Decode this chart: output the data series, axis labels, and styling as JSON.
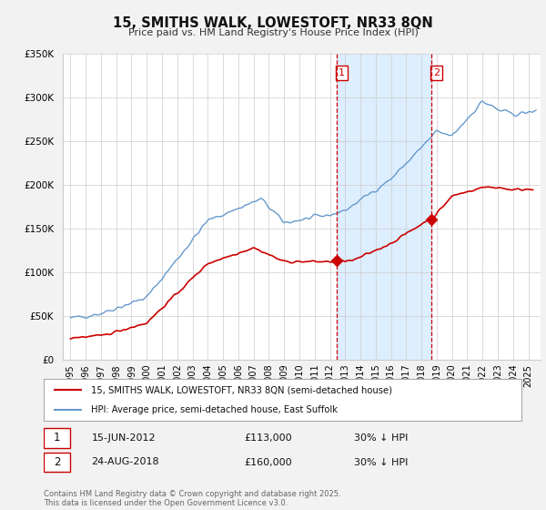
{
  "title": "15, SMITHS WALK, LOWESTOFT, NR33 8QN",
  "subtitle": "Price paid vs. HM Land Registry's House Price Index (HPI)",
  "ylabel_ticks": [
    "£0",
    "£50K",
    "£100K",
    "£150K",
    "£200K",
    "£250K",
    "£300K",
    "£350K"
  ],
  "ylim": [
    0,
    350000
  ],
  "xlim_start": 1994.5,
  "xlim_end": 2025.8,
  "background_color": "#f2f2f2",
  "plot_bg_color": "#ffffff",
  "red_color": "#cc0000",
  "blue_color": "#6699cc",
  "shade_color": "#ddeeff",
  "vline_color": "#cc0000",
  "point1_x": 2012.45,
  "point1_y": 113000,
  "point2_x": 2018.65,
  "point2_y": 160000,
  "legend_line1": "15, SMITHS WALK, LOWESTOFT, NR33 8QN (semi-detached house)",
  "legend_line2": "HPI: Average price, semi-detached house, East Suffolk",
  "ann1_date": "15-JUN-2012",
  "ann1_price": "£113,000",
  "ann1_hpi": "30% ↓ HPI",
  "ann2_date": "24-AUG-2018",
  "ann2_price": "£160,000",
  "ann2_hpi": "30% ↓ HPI",
  "footer": "Contains HM Land Registry data © Crown copyright and database right 2025.\nThis data is licensed under the Open Government Licence v3.0."
}
